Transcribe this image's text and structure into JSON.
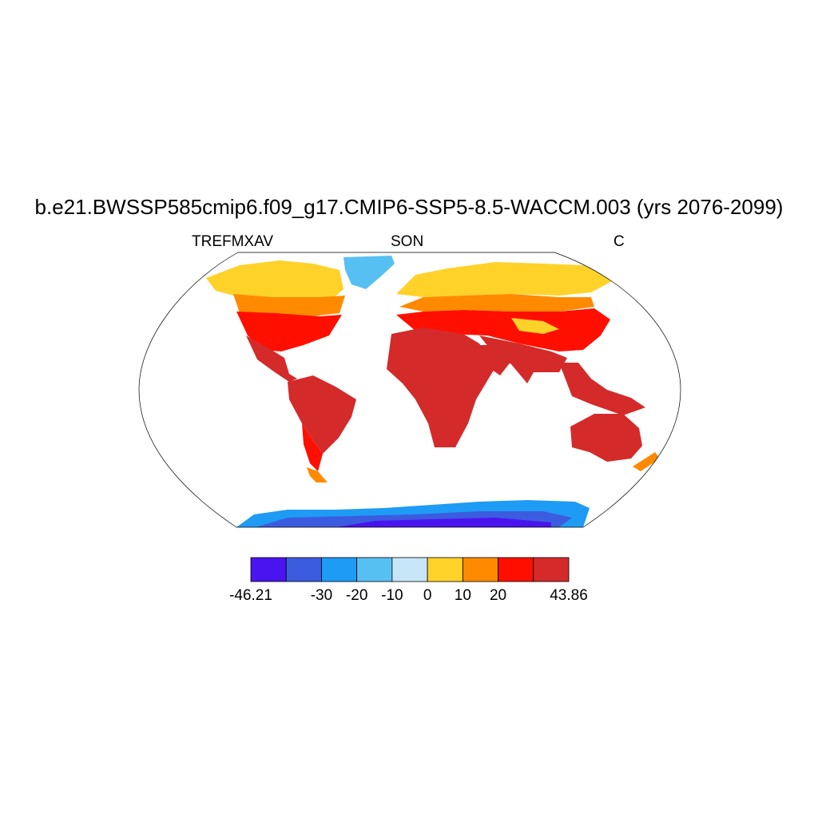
{
  "title": "b.e21.BWSSP585cmip6.f09_g17.CMIP6-SSP5-8.5-WACCM.003 (yrs 2076-2099)",
  "subtitle_left": "TREFMXAV",
  "subtitle_center": "SON",
  "subtitle_right": "C",
  "colorbar": {
    "min_label": "-46.21",
    "max_label": "43.86",
    "tick_labels": [
      "-30",
      "-20",
      "-10",
      "0",
      "10",
      "20"
    ],
    "colors": [
      "#4a14f0",
      "#3c5ce0",
      "#1e9bf5",
      "#57c0f2",
      "#c6e6f7",
      "#ffd22a",
      "#ff8a00",
      "#ff0f00",
      "#d42a2a"
    ]
  },
  "map": {
    "projection": "Robinson",
    "ocean_color": "#ffffff",
    "coastline_color": "#000000"
  }
}
